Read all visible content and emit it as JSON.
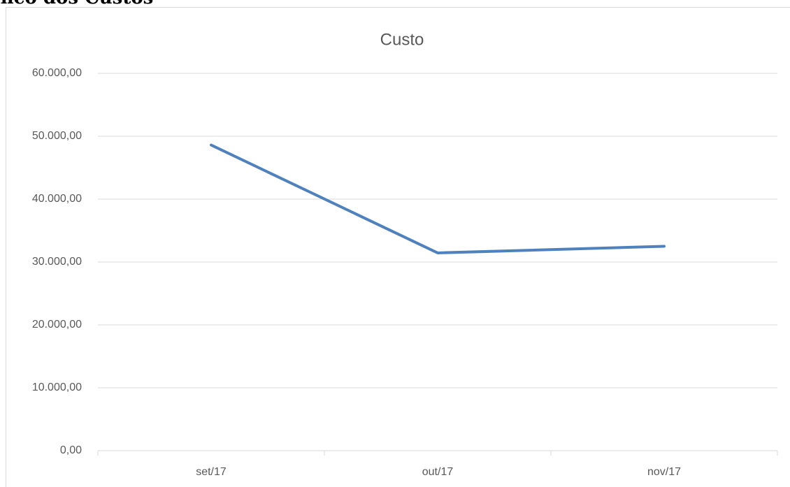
{
  "heading": "Gráfico dos Custos",
  "chart_data": {
    "type": "line",
    "title": "Custo",
    "categories": [
      "set/17",
      "out/17",
      "nov/17"
    ],
    "series": [
      {
        "name": "Custo",
        "color": "#4f81bd",
        "values": [
          48600,
          31450,
          32500
        ]
      }
    ],
    "ylim": [
      0,
      60000
    ],
    "yticks": [
      {
        "value": 0,
        "label": "0,00"
      },
      {
        "value": 10000,
        "label": "10.000,00"
      },
      {
        "value": 20000,
        "label": "20.000,00"
      },
      {
        "value": 30000,
        "label": "30.000,00"
      },
      {
        "value": 40000,
        "label": "40.000,00"
      },
      {
        "value": 50000,
        "label": "50.000,00"
      },
      {
        "value": 60000,
        "label": "60.000,00"
      }
    ],
    "grid": true
  }
}
